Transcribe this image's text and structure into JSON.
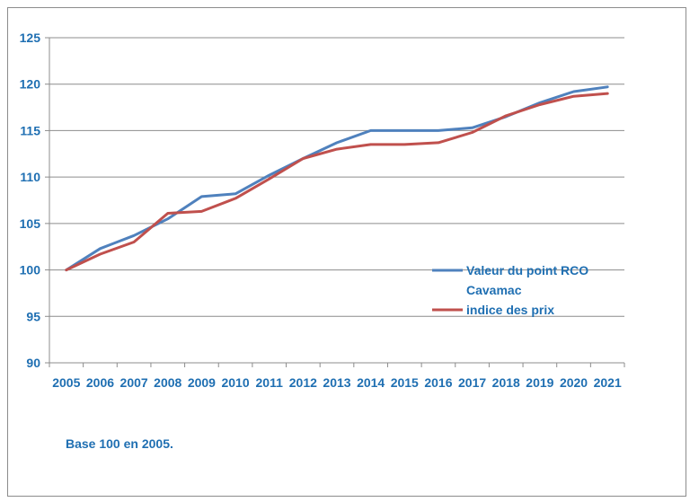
{
  "chart_data": {
    "type": "line",
    "title": "",
    "xlabel": "",
    "ylabel": "",
    "categories": [
      "2005",
      "2006",
      "2007",
      "2008",
      "2009",
      "2010",
      "2011",
      "2012",
      "2013",
      "2014",
      "2015",
      "2016",
      "2017",
      "2018",
      "2019",
      "2020",
      "2021"
    ],
    "ylim": [
      90,
      125
    ],
    "yticks": [
      90,
      95,
      100,
      105,
      110,
      115,
      120,
      125
    ],
    "grid": true,
    "legend_position": "right",
    "series": [
      {
        "name": "Valeur du point RCO Cavamac",
        "name_lines": [
          "Valeur du point RCO",
          "Cavamac"
        ],
        "color": "#4f81bd",
        "values": [
          100,
          102.3,
          103.7,
          105.5,
          107.9,
          108.2,
          110.2,
          112.0,
          113.7,
          115.0,
          115.0,
          115.0,
          115.3,
          116.5,
          118.0,
          119.2,
          119.7
        ]
      },
      {
        "name": "indice des prix",
        "name_lines": [
          "indice des prix"
        ],
        "color": "#c0504d",
        "values": [
          100,
          101.7,
          103.0,
          106.1,
          106.3,
          107.7,
          109.8,
          112.0,
          113.0,
          113.5,
          113.5,
          113.7,
          114.8,
          116.6,
          117.8,
          118.7,
          119.0
        ]
      }
    ]
  },
  "footnote": "Base 100 en 2005."
}
